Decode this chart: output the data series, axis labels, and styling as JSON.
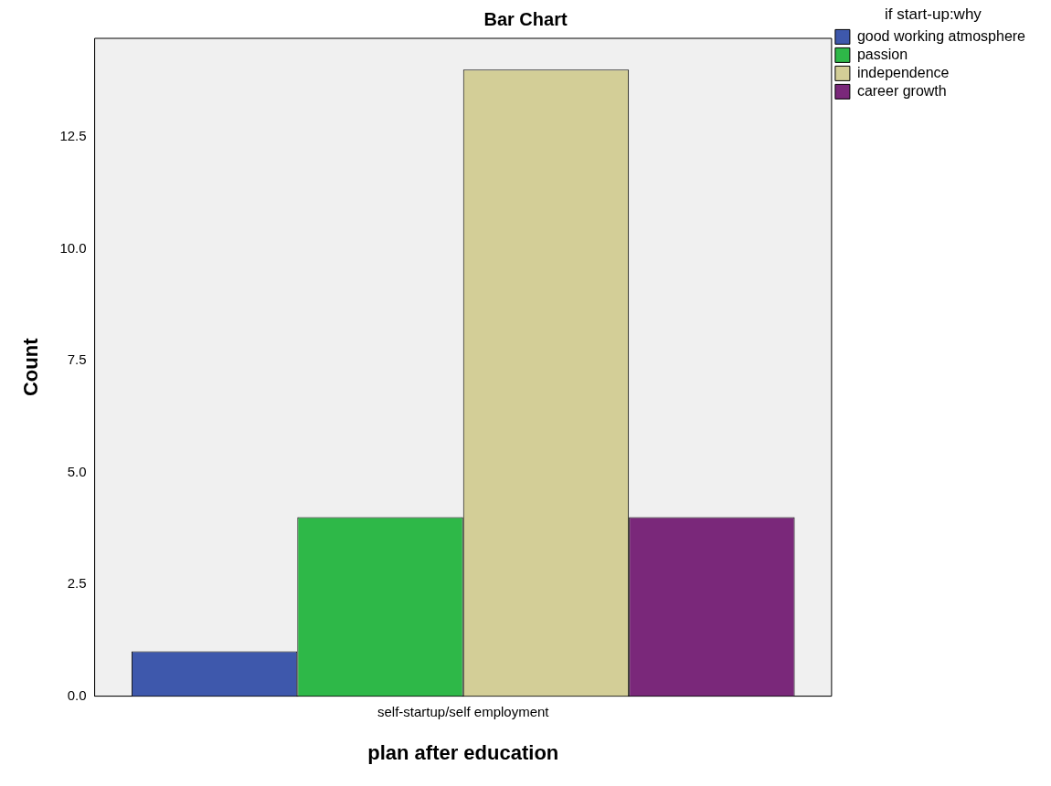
{
  "chart_data": {
    "type": "bar",
    "title": "Bar Chart",
    "xlabel": "plan after education",
    "ylabel": "Count",
    "legend_title": "if start-up:why",
    "categories": [
      "self-startup/self employment"
    ],
    "series": [
      {
        "name": "good working atmosphere",
        "color": "#3e58ac",
        "values": [
          1
        ]
      },
      {
        "name": "passion",
        "color": "#2eb848",
        "values": [
          4
        ]
      },
      {
        "name": "independence",
        "color": "#d3ce97",
        "values": [
          14
        ]
      },
      {
        "name": "career growth",
        "color": "#7a287a",
        "values": [
          4
        ]
      }
    ],
    "ylim": [
      0,
      14.7
    ],
    "yticks": [
      {
        "value": 0,
        "label": "0.0"
      },
      {
        "value": 2.5,
        "label": "2.5"
      },
      {
        "value": 5,
        "label": "5.0"
      },
      {
        "value": 7.5,
        "label": "7.5"
      },
      {
        "value": 10,
        "label": "10.0"
      },
      {
        "value": 12.5,
        "label": "12.5"
      }
    ],
    "grid": false,
    "legend": "top right"
  }
}
